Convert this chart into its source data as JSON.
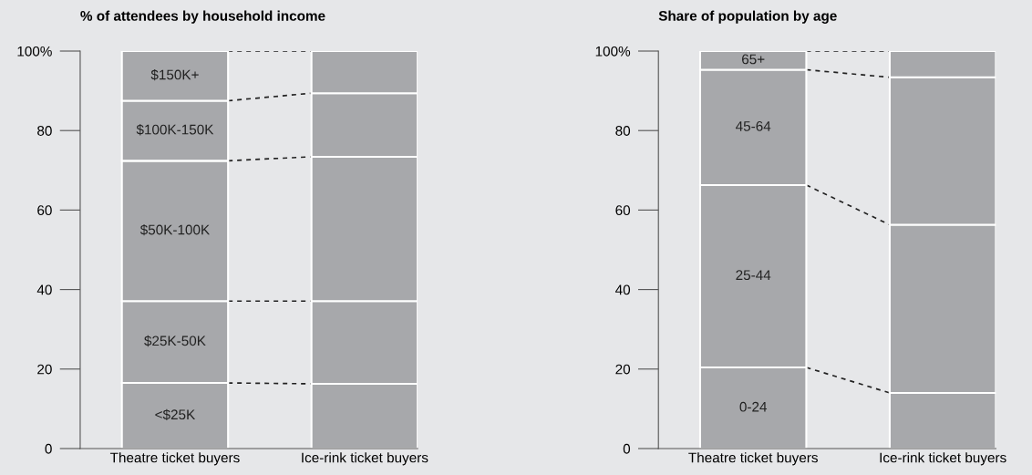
{
  "chart_data": [
    {
      "type": "bar",
      "title": "% of attendees by household income",
      "stacked": true,
      "categories": [
        "Theatre ticket buyers",
        "Ice-rink ticket buyers"
      ],
      "ylim": [
        0,
        100
      ],
      "yticks": [
        0,
        20,
        40,
        60,
        80,
        {
          "value": 100,
          "label": "100%"
        }
      ],
      "grid": false,
      "legend": false,
      "series": [
        {
          "name": "<$25K",
          "color": "#a7a8ab",
          "values": [
            16.5,
            16.3
          ]
        },
        {
          "name": "$25K-50K",
          "color": "#a7a8ab",
          "values": [
            20.6,
            20.8
          ]
        },
        {
          "name": "$50K-100K",
          "color": "#a7a8ab",
          "values": [
            35.3,
            36.3
          ]
        },
        {
          "name": "$100K-150K",
          "color": "#a7a8ab",
          "values": [
            15.1,
            16.0
          ]
        },
        {
          "name": "$150K+",
          "color": "#a7a8ab",
          "values": [
            12.5,
            10.6
          ]
        }
      ]
    },
    {
      "type": "bar",
      "title": "Share of population by age",
      "stacked": true,
      "categories": [
        "Theatre ticket buyers",
        "Ice-rink ticket buyers"
      ],
      "ylim": [
        0,
        100
      ],
      "yticks": [
        0,
        20,
        40,
        60,
        80,
        {
          "value": 100,
          "label": "100%"
        }
      ],
      "grid": false,
      "legend": false,
      "series": [
        {
          "name": "0-24",
          "color": "#a7a8ab",
          "values": [
            20.4,
            14.0
          ]
        },
        {
          "name": "25-44",
          "color": "#a7a8ab",
          "values": [
            45.9,
            42.3
          ]
        },
        {
          "name": "45-64",
          "color": "#a7a8ab",
          "values": [
            29.0,
            37.1
          ]
        },
        {
          "name": "65+",
          "color": "#a7a8ab",
          "values": [
            4.7,
            6.6
          ]
        }
      ]
    }
  ]
}
